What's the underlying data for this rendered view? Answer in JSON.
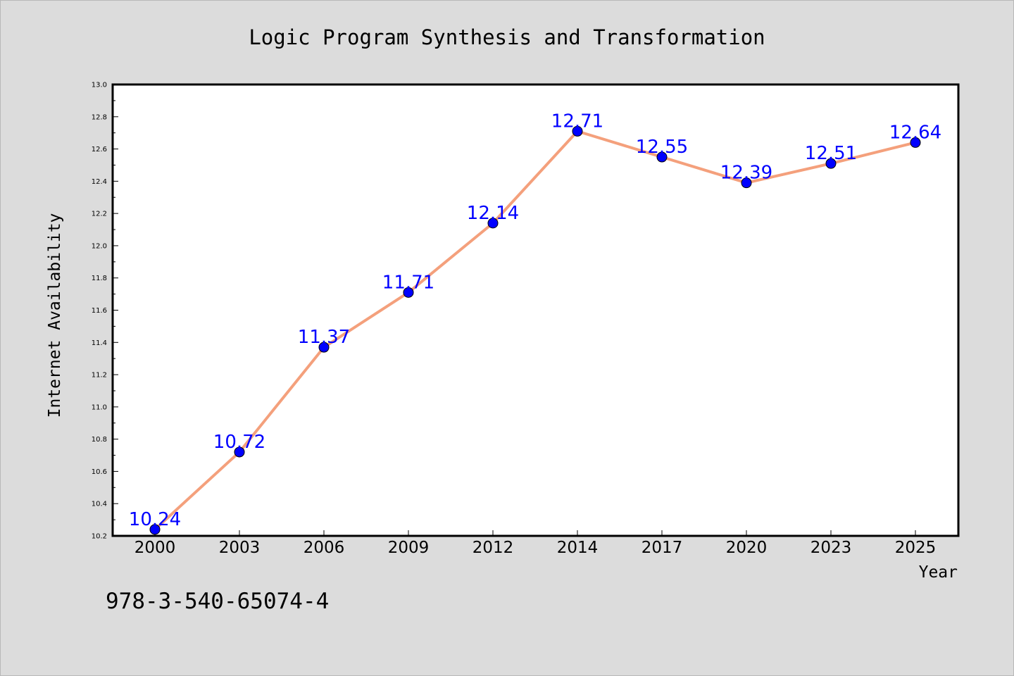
{
  "chart_data": {
    "type": "line",
    "title": "Logic Program Synthesis and Transformation",
    "xlabel": "Year",
    "ylabel": "Internet Availability",
    "categories": [
      "2000",
      "2003",
      "2006",
      "2009",
      "2012",
      "2014",
      "2017",
      "2020",
      "2023",
      "2025"
    ],
    "series": [
      {
        "values": [
          10.24,
          10.72,
          11.37,
          11.71,
          12.14,
          12.71,
          12.55,
          12.39,
          12.51,
          12.64
        ],
        "labels": [
          "10.24",
          "10.72",
          "11.37",
          "11.71",
          "12.14",
          "12.71",
          "12.55",
          "12.39",
          "12.51",
          "12.64"
        ],
        "line_color": "#f4a07c",
        "marker_color": "#0000ff"
      }
    ],
    "ylim": [
      10.2,
      13.0
    ],
    "yticks": [
      "10.2",
      "10.4",
      "10.6",
      "10.8",
      "11.0",
      "11.2",
      "11.4",
      "11.6",
      "11.8",
      "12.0",
      "12.2",
      "12.4",
      "12.6",
      "12.8",
      "13.0"
    ],
    "grid": false,
    "legend": "none",
    "annotation": "978-3-540-65074-4"
  }
}
